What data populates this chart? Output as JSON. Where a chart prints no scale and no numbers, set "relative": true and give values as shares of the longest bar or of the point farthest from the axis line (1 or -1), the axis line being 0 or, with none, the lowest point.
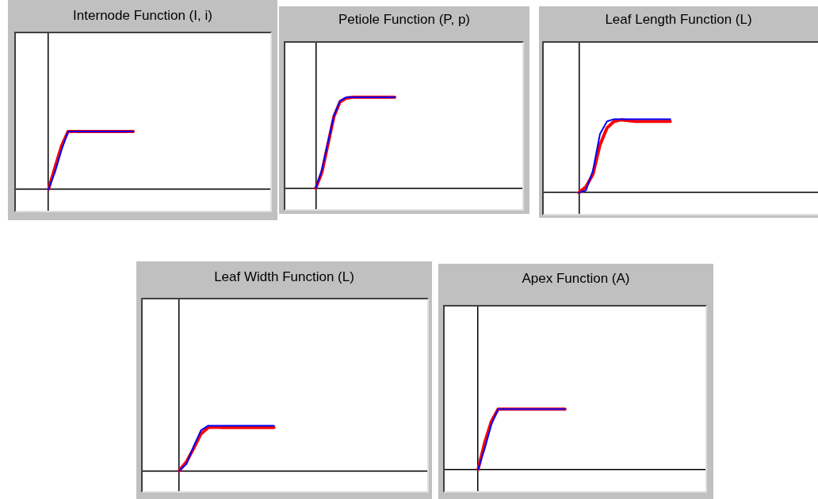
{
  "chart_data": [
    {
      "type": "line",
      "title": "Internode Function (I, i)",
      "relative": true,
      "tick_labels": false,
      "grid": false,
      "legend": false,
      "categories": [
        null,
        null,
        null,
        null,
        null,
        null,
        null,
        null,
        null,
        null,
        null,
        null,
        null,
        null,
        null,
        null,
        null,
        null,
        null,
        null,
        null,
        null,
        null,
        null,
        null,
        null,
        null,
        null,
        null,
        null,
        null,
        null,
        null,
        null,
        null,
        null,
        null,
        null,
        null,
        null
      ],
      "series": [
        {
          "color": "#ff0000",
          "values": [
            null,
            null,
            null,
            null,
            null,
            0,
            0.38,
            0.75,
            1,
            1,
            1,
            1,
            1,
            1,
            1,
            1,
            1,
            1,
            1,
            null,
            null,
            null,
            null,
            null,
            null,
            null,
            null,
            null,
            null,
            null,
            null,
            null,
            null,
            null,
            null,
            null,
            null,
            null,
            null,
            null
          ]
        },
        {
          "color": "#0000ff",
          "values": [
            null,
            null,
            null,
            null,
            null,
            0,
            0.3,
            0.68,
            1,
            1,
            1,
            1,
            1,
            1,
            1,
            1,
            1,
            1,
            1,
            null,
            null,
            null,
            null,
            null,
            null,
            null,
            null,
            null,
            null,
            null,
            null,
            null,
            null,
            null,
            null,
            null,
            null,
            null,
            null,
            null
          ]
        }
      ]
    },
    {
      "type": "line",
      "title": "Petiole Function (P, p)",
      "relative": true,
      "tick_labels": false,
      "grid": false,
      "legend": false,
      "categories": [
        null,
        null,
        null,
        null,
        null,
        null,
        null,
        null,
        null,
        null,
        null,
        null,
        null,
        null,
        null,
        null,
        null,
        null,
        null,
        null,
        null,
        null,
        null,
        null,
        null,
        null,
        null,
        null,
        null,
        null,
        null,
        null,
        null,
        null,
        null,
        null,
        null,
        null,
        null,
        null
      ],
      "series": [
        {
          "color": "#ff0000",
          "values": [
            null,
            null,
            null,
            null,
            null,
            0,
            0.17,
            0.48,
            0.79,
            0.95,
            0.99,
            1,
            1,
            1,
            1,
            1,
            1,
            1,
            1,
            null,
            null,
            null,
            null,
            null,
            null,
            null,
            null,
            null,
            null,
            null,
            null,
            null,
            null,
            null,
            null,
            null,
            null,
            null,
            null,
            null
          ]
        },
        {
          "color": "#0000ff",
          "values": [
            null,
            null,
            null,
            null,
            null,
            0,
            0.2,
            0.5,
            0.8,
            0.96,
            1,
            1,
            1,
            1,
            1,
            1,
            1,
            1,
            1,
            null,
            null,
            null,
            null,
            null,
            null,
            null,
            null,
            null,
            null,
            null,
            null,
            null,
            null,
            null,
            null,
            null,
            null,
            null,
            null,
            null
          ]
        }
      ]
    },
    {
      "type": "line",
      "title": "Leaf Length Function (L)",
      "relative": true,
      "tick_labels": false,
      "grid": false,
      "legend": false,
      "categories": [
        null,
        null,
        null,
        null,
        null,
        null,
        null,
        null,
        null,
        null,
        null,
        null,
        null,
        null,
        null,
        null,
        null,
        null,
        null,
        null,
        null,
        null,
        null,
        null,
        null,
        null,
        null,
        null,
        null,
        null,
        null,
        null,
        null,
        null,
        null,
        null,
        null,
        null,
        null,
        null
      ],
      "series": [
        {
          "color": "#ff0000",
          "values": [
            null,
            null,
            null,
            null,
            null,
            0,
            0.08,
            0.25,
            0.65,
            0.88,
            0.97,
            0.99,
            0.98,
            0.97,
            0.97,
            0.97,
            0.97,
            0.97,
            0.97,
            null,
            null,
            null,
            null,
            null,
            null,
            null,
            null,
            null,
            null,
            null,
            null,
            null,
            null,
            null,
            null,
            null,
            null,
            null,
            null,
            null
          ]
        },
        {
          "color": "#0000ff",
          "values": [
            null,
            null,
            null,
            null,
            null,
            0,
            0.03,
            0.3,
            0.8,
            0.97,
            1,
            1,
            1,
            1,
            1,
            1,
            1,
            1,
            1,
            null,
            null,
            null,
            null,
            null,
            null,
            null,
            null,
            null,
            null,
            null,
            null,
            null,
            null,
            null,
            null,
            null,
            null,
            null,
            null,
            null
          ]
        }
      ]
    },
    {
      "type": "line",
      "title": "Leaf Width Function (L)",
      "relative": true,
      "tick_labels": false,
      "grid": false,
      "legend": false,
      "categories": [
        null,
        null,
        null,
        null,
        null,
        null,
        null,
        null,
        null,
        null,
        null,
        null,
        null,
        null,
        null,
        null,
        null,
        null,
        null,
        null,
        null,
        null,
        null,
        null,
        null,
        null,
        null,
        null,
        null,
        null,
        null,
        null,
        null,
        null,
        null,
        null,
        null,
        null,
        null,
        null
      ],
      "series": [
        {
          "color": "#ff0000",
          "values": [
            null,
            null,
            null,
            null,
            null,
            0,
            0.2,
            0.5,
            0.82,
            0.96,
            0.97,
            0.96,
            0.96,
            0.96,
            0.96,
            0.96,
            0.96,
            0.96,
            0.96,
            null,
            null,
            null,
            null,
            null,
            null,
            null,
            null,
            null,
            null,
            null,
            null,
            null,
            null,
            null,
            null,
            null,
            null,
            null,
            null,
            null
          ]
        },
        {
          "color": "#0000ff",
          "values": [
            null,
            null,
            null,
            null,
            null,
            0,
            0.15,
            0.55,
            0.9,
            1,
            1,
            1,
            1,
            1,
            1,
            1,
            1,
            1,
            1,
            null,
            null,
            null,
            null,
            null,
            null,
            null,
            null,
            null,
            null,
            null,
            null,
            null,
            null,
            null,
            null,
            null,
            null,
            null,
            null,
            null
          ]
        }
      ]
    },
    {
      "type": "line",
      "title": "Apex Function (A)",
      "relative": true,
      "tick_labels": false,
      "grid": false,
      "legend": false,
      "categories": [
        null,
        null,
        null,
        null,
        null,
        null,
        null,
        null,
        null,
        null,
        null,
        null,
        null,
        null,
        null,
        null,
        null,
        null,
        null,
        null,
        null,
        null,
        null,
        null,
        null,
        null,
        null,
        null,
        null,
        null,
        null,
        null,
        null,
        null,
        null,
        null,
        null,
        null,
        null,
        null
      ],
      "series": [
        {
          "color": "#ff0000",
          "values": [
            null,
            null,
            null,
            null,
            null,
            0,
            0.45,
            0.8,
            1,
            1,
            1,
            1,
            1,
            1,
            1,
            1,
            1,
            1,
            1,
            null,
            null,
            null,
            null,
            null,
            null,
            null,
            null,
            null,
            null,
            null,
            null,
            null,
            null,
            null,
            null,
            null,
            null,
            null,
            null,
            null
          ]
        },
        {
          "color": "#0000ff",
          "values": [
            null,
            null,
            null,
            null,
            null,
            0,
            0.35,
            0.75,
            1,
            1,
            1,
            1,
            1,
            1,
            1,
            1,
            1,
            1,
            1,
            null,
            null,
            null,
            null,
            null,
            null,
            null,
            null,
            null,
            null,
            null,
            null,
            null,
            null,
            null,
            null,
            null,
            null,
            null,
            null,
            null
          ]
        }
      ]
    }
  ]
}
